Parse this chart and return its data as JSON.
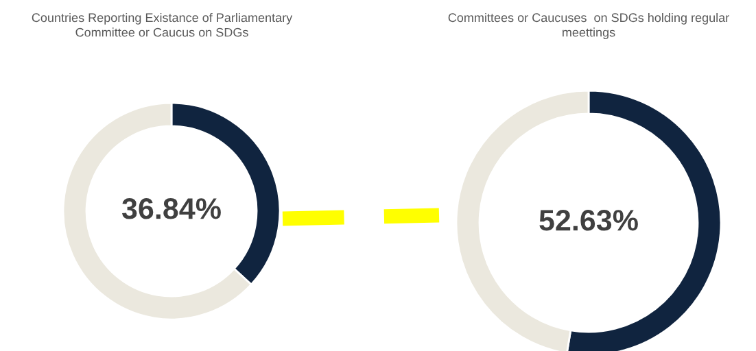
{
  "chart_data": [
    {
      "type": "donut",
      "title": "Countries Reporting Existance of Parliamentary\nCommittee or Caucus on SDGs",
      "categories": [
        null,
        null
      ],
      "values": [
        36.84,
        63.16
      ],
      "colors": [
        "#10243f",
        "#ebe8de"
      ],
      "annotations": [
        "36.84%"
      ]
    },
    {
      "type": "donut",
      "title": "Committees or Caucuses  on SDGs holding regular\nmeettings",
      "categories": [
        null,
        null
      ],
      "values": [
        52.63,
        47.37
      ],
      "colors": [
        "#10243f",
        "#ebe8de"
      ],
      "annotations": [
        "52.63%"
      ]
    }
  ]
}
